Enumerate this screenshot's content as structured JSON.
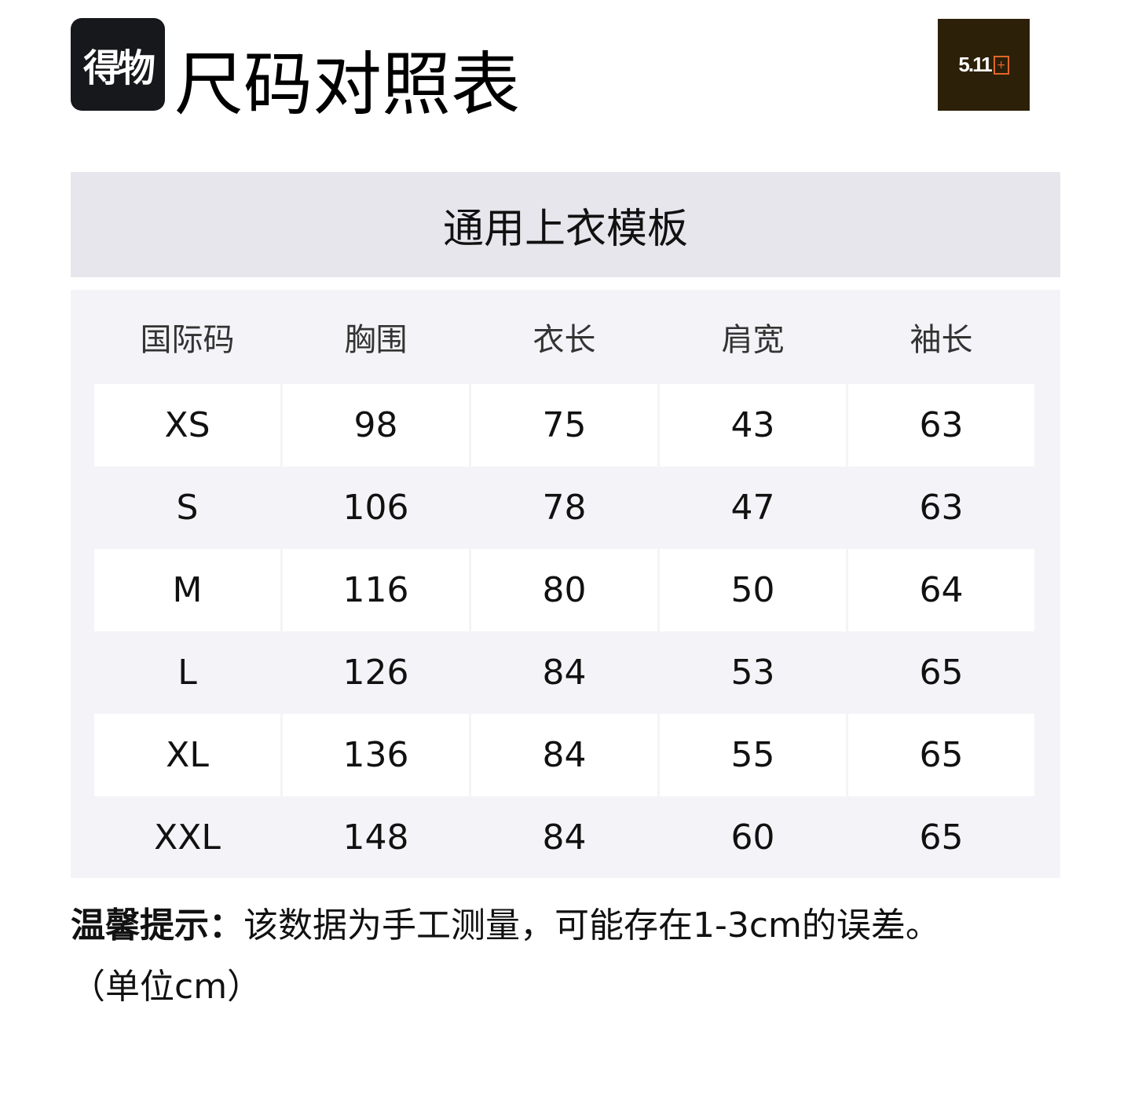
{
  "header": {
    "logo_text": "得物",
    "title": "尺码对照表",
    "brand_logo_text": "5.11"
  },
  "table": {
    "caption": "通用上衣模板",
    "columns": [
      "国际码",
      "胸围",
      "衣长",
      "肩宽",
      "袖长"
    ],
    "rows": [
      [
        "XS",
        "98",
        "75",
        "43",
        "63"
      ],
      [
        "S",
        "106",
        "78",
        "47",
        "63"
      ],
      [
        "M",
        "116",
        "80",
        "50",
        "64"
      ],
      [
        "L",
        "126",
        "84",
        "53",
        "65"
      ],
      [
        "XL",
        "136",
        "84",
        "55",
        "65"
      ],
      [
        "XXL",
        "148",
        "84",
        "60",
        "65"
      ]
    ]
  },
  "note": {
    "label": "温馨提示：",
    "text": "该数据为手工测量，可能存在1-3cm的误差。",
    "unit": "（单位cm）"
  }
}
